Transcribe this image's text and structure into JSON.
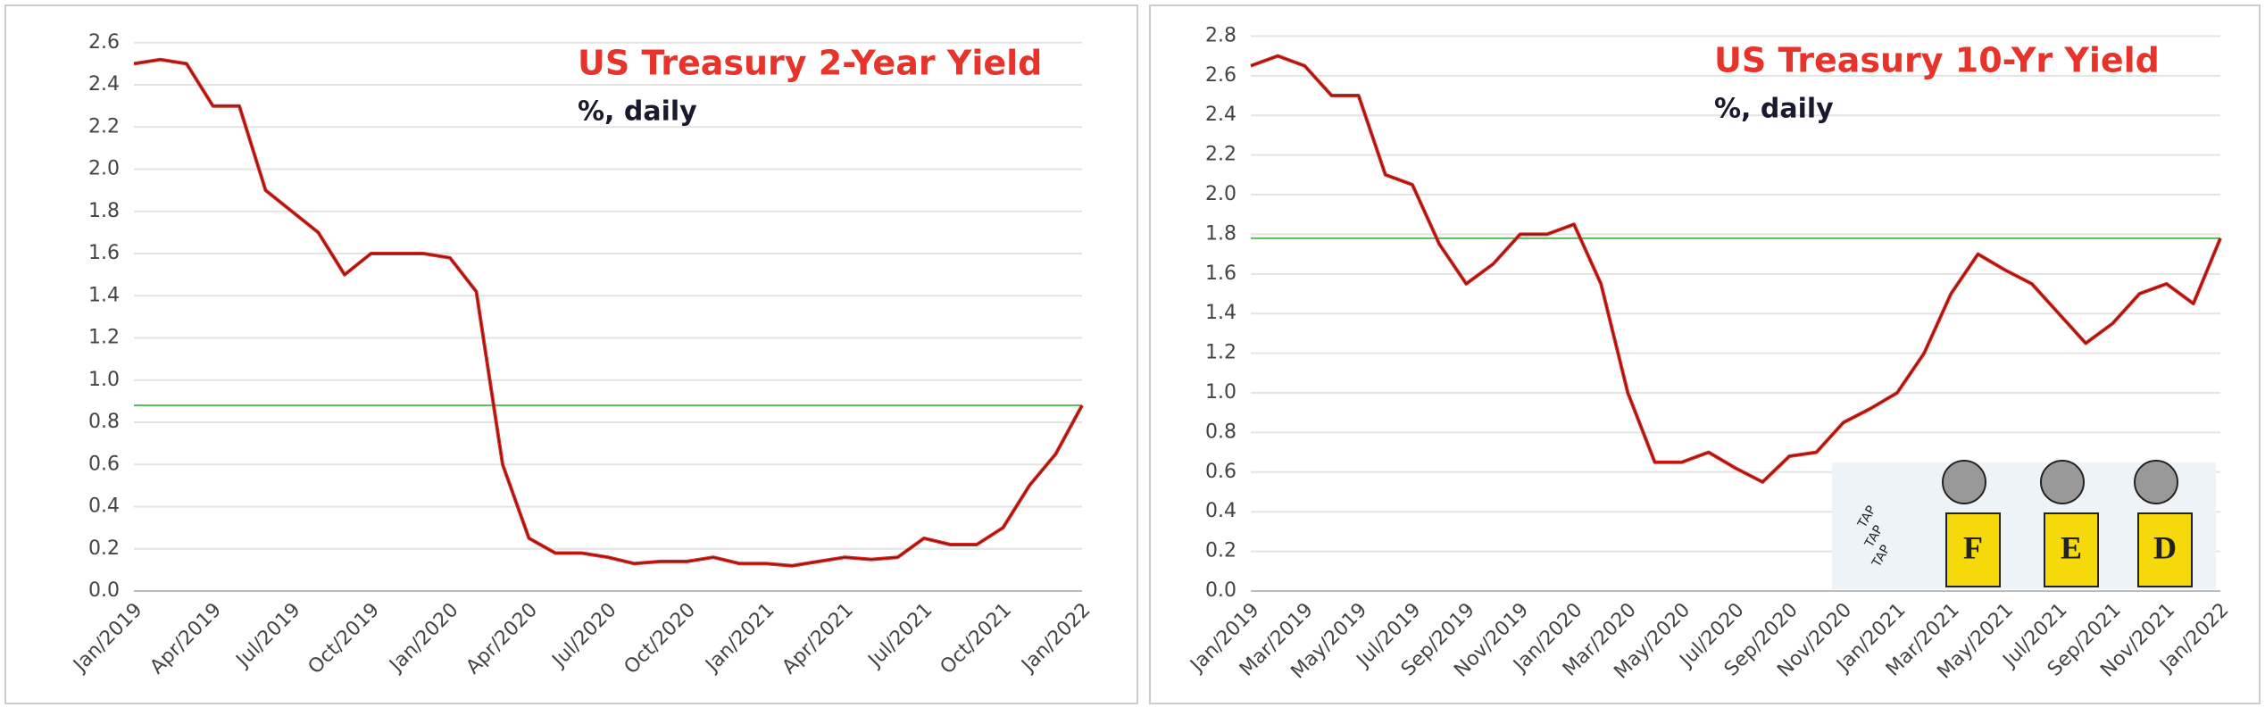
{
  "chart_data": [
    {
      "type": "line",
      "title": "US Treasury  2-Year Yield",
      "subtitle": "%, daily",
      "x": [
        "Jan/2019",
        "Feb/2019",
        "Mar/2019",
        "Apr/2019",
        "May/2019",
        "Jun/2019",
        "Jul/2019",
        "Aug/2019",
        "Sep/2019",
        "Oct/2019",
        "Nov/2019",
        "Dec/2019",
        "Jan/2020",
        "Feb/2020",
        "Mar/2020",
        "Apr/2020",
        "May/2020",
        "Jun/2020",
        "Jul/2020",
        "Aug/2020",
        "Sep/2020",
        "Oct/2020",
        "Nov/2020",
        "Dec/2020",
        "Jan/2021",
        "Feb/2021",
        "Mar/2021",
        "Apr/2021",
        "May/2021",
        "Jun/2021",
        "Jul/2021",
        "Aug/2021",
        "Sep/2021",
        "Oct/2021",
        "Nov/2021",
        "Dec/2021",
        "Jan/2022"
      ],
      "series": [
        {
          "color": "#e02a22",
          "values": [
            2.5,
            2.52,
            2.5,
            2.3,
            2.3,
            1.9,
            1.8,
            1.7,
            1.5,
            1.6,
            1.6,
            1.6,
            1.58,
            1.42,
            0.6,
            0.25,
            0.18,
            0.18,
            0.16,
            0.13,
            0.14,
            0.14,
            0.16,
            0.13,
            0.13,
            0.12,
            0.14,
            0.16,
            0.15,
            0.16,
            0.25,
            0.22,
            0.22,
            0.3,
            0.5,
            0.65,
            0.88
          ]
        }
      ],
      "xticks": [
        "Jan/2019",
        "Apr/2019",
        "Jul/2019",
        "Oct/2019",
        "Jan/2020",
        "Apr/2020",
        "Jul/2020",
        "Oct/2020",
        "Jan/2021",
        "Apr/2021",
        "Jul/2021",
        "Oct/2021",
        "Jan/2022"
      ],
      "ylim": [
        0,
        2.65
      ],
      "yticks": [
        {
          "value": 0,
          "label": "0.0"
        },
        0.2,
        0.4,
        0.6,
        0.8,
        {
          "value": 1,
          "label": "1.0"
        },
        1.2,
        1.4,
        1.6,
        1.8,
        {
          "value": 2,
          "label": "2.0"
        },
        2.2,
        2.4,
        2.6
      ],
      "grid": true,
      "hline": 0.88,
      "hline_color": "#5cb85c"
    },
    {
      "type": "line",
      "title": "US Treasury  10-Yr Yield",
      "subtitle": "%, daily",
      "x": [
        "Jan/2019",
        "Feb/2019",
        "Mar/2019",
        "Apr/2019",
        "May/2019",
        "Jun/2019",
        "Jul/2019",
        "Aug/2019",
        "Sep/2019",
        "Oct/2019",
        "Nov/2019",
        "Dec/2019",
        "Jan/2020",
        "Feb/2020",
        "Mar/2020",
        "Apr/2020",
        "May/2020",
        "Jun/2020",
        "Jul/2020",
        "Aug/2020",
        "Sep/2020",
        "Oct/2020",
        "Nov/2020",
        "Dec/2020",
        "Jan/2021",
        "Feb/2021",
        "Mar/2021",
        "Apr/2021",
        "May/2021",
        "Jun/2021",
        "Jul/2021",
        "Aug/2021",
        "Sep/2021",
        "Oct/2021",
        "Nov/2021",
        "Dec/2021",
        "Jan/2022"
      ],
      "series": [
        {
          "color": "#e02a22",
          "values": [
            2.65,
            2.7,
            2.65,
            2.5,
            2.5,
            2.1,
            2.05,
            1.75,
            1.55,
            1.65,
            1.8,
            1.8,
            1.85,
            1.55,
            1.0,
            0.65,
            0.65,
            0.7,
            0.62,
            0.55,
            0.68,
            0.7,
            0.85,
            0.92,
            1.0,
            1.2,
            1.5,
            1.7,
            1.62,
            1.55,
            1.4,
            1.25,
            1.35,
            1.5,
            1.55,
            1.45,
            1.78
          ]
        }
      ],
      "xticks": [
        "Jan/2019",
        "Mar/2019",
        "May/2019",
        "Jul/2019",
        "Sep/2019",
        "Nov/2019",
        "Jan/2020",
        "Mar/2020",
        "May/2020",
        "Jul/2020",
        "Sep/2020",
        "Nov/2020",
        "Jan/2021",
        "Mar/2021",
        "May/2021",
        "Jul/2021",
        "Sep/2021",
        "Nov/2021",
        "Jan/2022"
      ],
      "ylim": [
        0,
        2.82
      ],
      "yticks": [
        {
          "value": 0,
          "label": "0.0"
        },
        0.2,
        0.4,
        0.6,
        0.8,
        {
          "value": 1,
          "label": "1.0"
        },
        1.2,
        1.4,
        1.6,
        1.8,
        {
          "value": 2,
          "label": "2.0"
        },
        2.2,
        2.4,
        2.6,
        2.8
      ],
      "grid": true,
      "hline": 1.78,
      "hline_color": "#5cb85c",
      "annotations": [
        "F",
        "E",
        "D",
        "TAP",
        "TAP",
        "TAP"
      ]
    }
  ]
}
